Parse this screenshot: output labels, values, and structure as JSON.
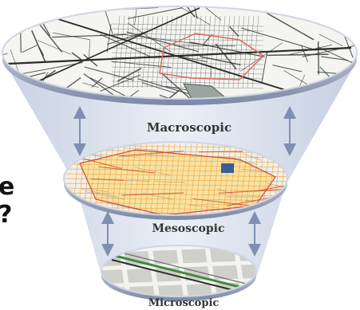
{
  "levels": [
    {
      "label": "Macroscopic"
    },
    {
      "label": "Mesoscopic"
    },
    {
      "label": "Microscopic"
    }
  ],
  "left_text": {
    "line1": "e",
    "line2": "?"
  },
  "colors": {
    "funnel": "#c9d3e4",
    "arrow": "#7f8fb2",
    "disk_rim": "#8a94ad",
    "road_dark": "#2b2b2b",
    "region_outline": "#e06a5a",
    "meso_grid": "#f2a23a",
    "meso_fill": "#f7e3a3",
    "micro_rail": "#3f8a3f"
  },
  "icons": [
    "double-arrow-icon"
  ]
}
